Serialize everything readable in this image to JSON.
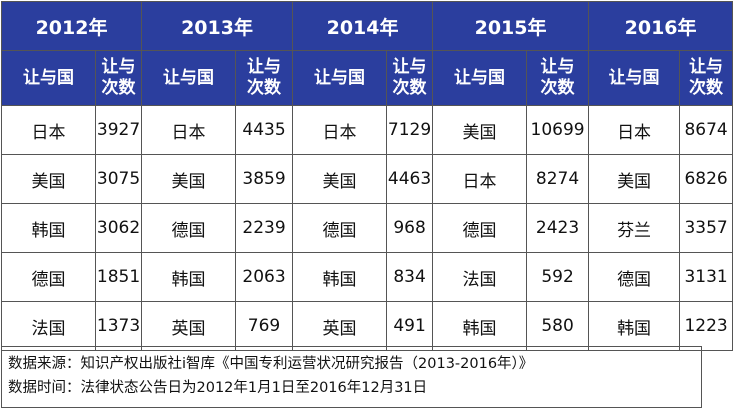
{
  "years": [
    "2012年",
    "2013年",
    "2014年",
    "2015年",
    "2016年"
  ],
  "subheaders": {
    "country": "让与国",
    "count": "让与次数"
  },
  "rows": [
    [
      [
        "日本",
        "3927"
      ],
      [
        "日本",
        "4435"
      ],
      [
        "日本",
        "7129"
      ],
      [
        "美国",
        "10699"
      ],
      [
        "日本",
        "8674"
      ]
    ],
    [
      [
        "美国",
        "3075"
      ],
      [
        "美国",
        "3859"
      ],
      [
        "美国",
        "4463"
      ],
      [
        "日本",
        "8274"
      ],
      [
        "美国",
        "6826"
      ]
    ],
    [
      [
        "韩国",
        "3062"
      ],
      [
        "德国",
        "2239"
      ],
      [
        "德国",
        "968"
      ],
      [
        "德国",
        "2423"
      ],
      [
        "芬兰",
        "3357"
      ]
    ],
    [
      [
        "德国",
        "1851"
      ],
      [
        "韩国",
        "2063"
      ],
      [
        "韩国",
        "834"
      ],
      [
        "法国",
        "592"
      ],
      [
        "德国",
        "3131"
      ]
    ],
    [
      [
        "法国",
        "1373"
      ],
      [
        "英国",
        "769"
      ],
      [
        "英国",
        "491"
      ],
      [
        "韩国",
        "580"
      ],
      [
        "韩国",
        "1223"
      ]
    ]
  ],
  "notes": {
    "source": "数据来源：知识产权出版社i智库《中国专利运营状况研究报告（2013-2016年）》",
    "period": "数据时间：法律状态公告日为2012年1月1日至2016年12月31日"
  },
  "colors": {
    "header_bg": "#2b3e9e",
    "header_text": "#ffffff",
    "border": "#555555"
  }
}
